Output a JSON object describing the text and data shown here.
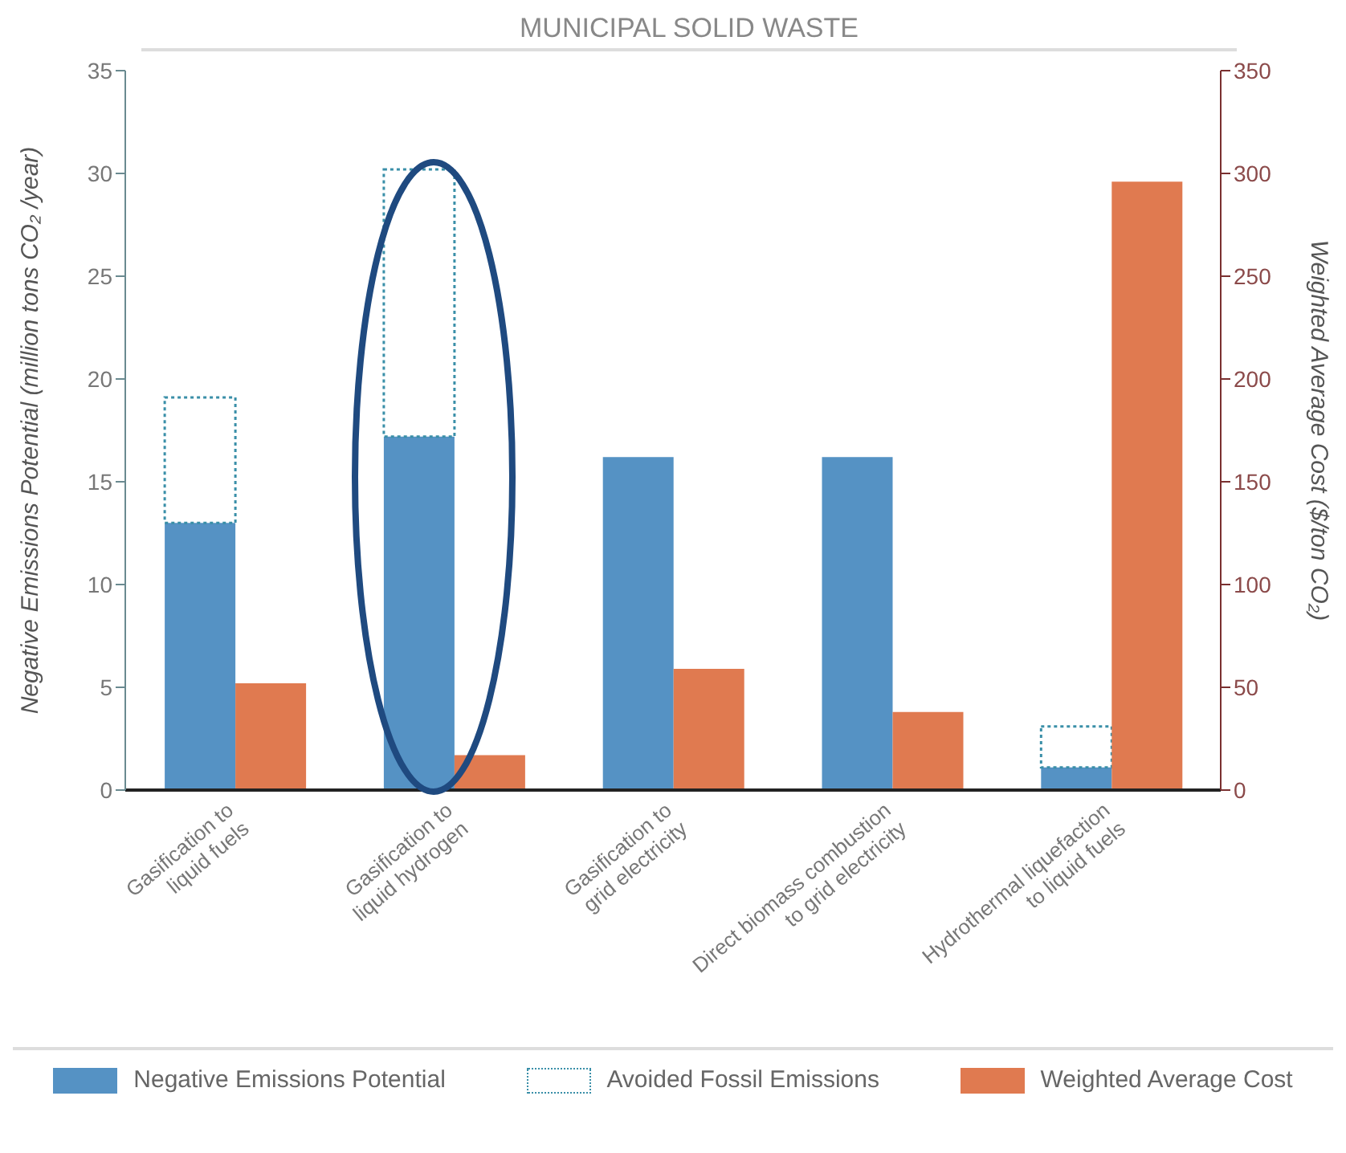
{
  "chart_data": {
    "type": "bar",
    "title": "MUNICIPAL SOLID WASTE",
    "ylabel": "Negative Emissions Potential (million tons CO₂ /year)",
    "y2label": "Weighted Average Cost ($/ton CO₂)",
    "categories": [
      "Gasification to\nliquid fuels",
      "Gasification to\nliquid hydrogen",
      "Gasification to\ngrid electricity",
      "Direct biomass combustion\nto grid electricity",
      "Hydrothermal liquefaction\nto liquid fuels"
    ],
    "stacked": true,
    "series": [
      {
        "name": "Negative Emissions Potential",
        "color": "#5592c4",
        "values": [
          13.0,
          17.2,
          16.2,
          16.2,
          1.1
        ]
      },
      {
        "name": "Avoided Fossil Emissions",
        "color": "#3a8fa8",
        "line_style": "dotted",
        "values": [
          6.1,
          13.0,
          null,
          null,
          2.0
        ]
      },
      {
        "name": "Weighted Average Cost",
        "color": "#e07a50",
        "axis": "y2",
        "values": [
          52,
          17,
          59,
          38,
          296
        ]
      }
    ],
    "ylim": [
      0,
      35
    ],
    "yticks": [
      0,
      5,
      10,
      15,
      20,
      25,
      30,
      35
    ],
    "y2lim": [
      0,
      350
    ],
    "y2ticks": [
      0,
      50,
      100,
      150,
      200,
      250,
      300,
      350
    ],
    "legend": "bottom"
  }
}
